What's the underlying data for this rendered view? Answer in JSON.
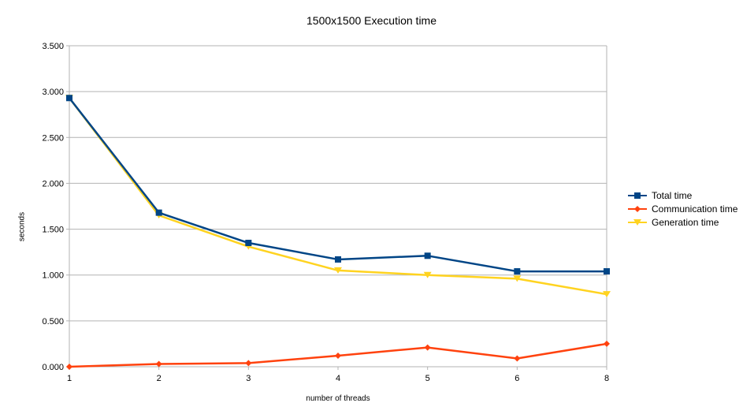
{
  "chart_data": {
    "type": "line",
    "title": "1500x1500 Execution time",
    "xlabel": "number of threads",
    "ylabel": "seconds",
    "categories": [
      "1",
      "2",
      "3",
      "4",
      "5",
      "6",
      "8"
    ],
    "ylim": [
      0,
      3.5
    ],
    "yticks": [
      "0.000",
      "0.500",
      "1.000",
      "1.500",
      "2.000",
      "2.500",
      "3.000",
      "3.500"
    ],
    "grid": true,
    "legend_position": "right",
    "series": [
      {
        "name": "Total time",
        "color": "#004586",
        "marker": "square",
        "values": [
          2.93,
          1.68,
          1.35,
          1.17,
          1.21,
          1.04,
          1.04
        ]
      },
      {
        "name": "Communication time",
        "color": "#ff420e",
        "marker": "diamond",
        "values": [
          0.0,
          0.03,
          0.04,
          0.12,
          0.21,
          0.09,
          0.25
        ]
      },
      {
        "name": "Generation time",
        "color": "#ffd320",
        "marker": "triangle-down",
        "values": [
          2.93,
          1.65,
          1.31,
          1.05,
          1.0,
          0.96,
          0.79
        ]
      }
    ]
  }
}
